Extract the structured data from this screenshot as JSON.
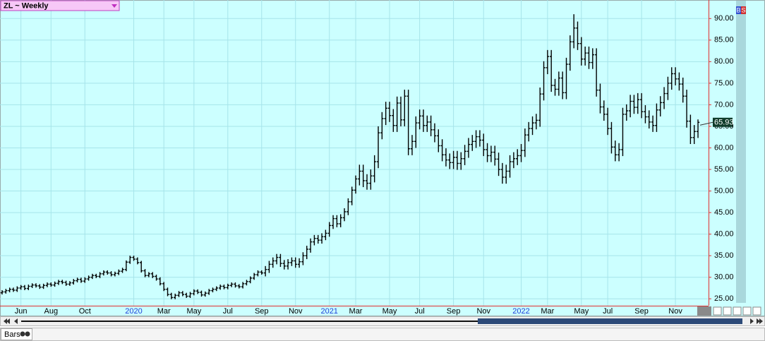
{
  "chart_data": {
    "type": "ohlc",
    "title": "ZL ~ Weekly",
    "color": "#000000",
    "grid": true,
    "ylim": [
      23.4,
      94.3
    ],
    "yticks": [
      {
        "value": 25,
        "label": "25.00"
      },
      {
        "value": 30,
        "label": "30.00"
      },
      {
        "value": 35,
        "label": "35.00"
      },
      {
        "value": 40,
        "label": "40.00"
      },
      {
        "value": 45,
        "label": "45.00"
      },
      {
        "value": 50,
        "label": "50.00"
      },
      {
        "value": 55,
        "label": "55.00"
      },
      {
        "value": 60,
        "label": "60.00"
      },
      {
        "value": 65,
        "label": "65.00"
      },
      {
        "value": 70,
        "label": "70.00"
      },
      {
        "value": 75,
        "label": "75.00"
      },
      {
        "value": 80,
        "label": "80.00"
      },
      {
        "value": 85,
        "label": "85.00"
      },
      {
        "value": 90,
        "label": "90.00"
      }
    ],
    "categories": [
      null,
      null,
      null,
      null,
      null,
      "Jun",
      null,
      null,
      null,
      null,
      null,
      null,
      null,
      "Aug",
      null,
      null,
      null,
      null,
      null,
      null,
      null,
      null,
      "Oct",
      null,
      null,
      null,
      null,
      null,
      null,
      null,
      null,
      null,
      null,
      null,
      null,
      "2020",
      null,
      null,
      null,
      null,
      null,
      null,
      null,
      "Mar",
      null,
      null,
      null,
      null,
      null,
      null,
      null,
      "May",
      null,
      null,
      null,
      null,
      null,
      null,
      null,
      null,
      "Jul",
      null,
      null,
      null,
      null,
      null,
      null,
      null,
      null,
      "Sep",
      null,
      null,
      null,
      null,
      null,
      null,
      null,
      null,
      "Nov",
      null,
      null,
      null,
      null,
      null,
      null,
      null,
      null,
      "2021",
      null,
      null,
      null,
      null,
      null,
      null,
      "Mar",
      null,
      null,
      null,
      null,
      null,
      null,
      null,
      null,
      "May",
      null,
      null,
      null,
      null,
      null,
      null,
      null,
      "Jul",
      null,
      null,
      null,
      null,
      null,
      null,
      null,
      null,
      "Sep",
      null,
      null,
      null,
      null,
      null,
      null,
      null,
      "Nov",
      null,
      null,
      null,
      null,
      null,
      null,
      null,
      null,
      null,
      "2022",
      null,
      null,
      null,
      null,
      null,
      null,
      "Mar",
      null,
      null,
      null,
      null,
      null,
      null,
      null,
      null,
      "May",
      null,
      null,
      null,
      null,
      null,
      null,
      "Jul",
      null,
      null,
      null,
      null,
      null,
      null,
      null,
      null,
      "Sep",
      null,
      null,
      null,
      null,
      null,
      null,
      null,
      null,
      "Nov",
      null,
      null,
      null,
      null,
      null,
      null
    ],
    "open": [
      26.4,
      26.6,
      26.9,
      27.2,
      27.0,
      27.5,
      27.8,
      27.4,
      27.9,
      28.2,
      28.0,
      27.7,
      28.1,
      28.4,
      28.2,
      28.6,
      29.0,
      28.8,
      28.4,
      28.7,
      29.2,
      29.5,
      29.1,
      29.6,
      30.0,
      30.4,
      30.2,
      30.8,
      31.2,
      31.0,
      30.6,
      30.9,
      31.4,
      31.8,
      33.5,
      34.6,
      34.2,
      33.4,
      31.5,
      30.4,
      30.8,
      30.2,
      29.6,
      28.5,
      27.2,
      26.0,
      25.3,
      25.8,
      26.4,
      26.0,
      25.6,
      26.2,
      26.8,
      26.5,
      25.9,
      26.3,
      26.9,
      27.2,
      27.5,
      27.9,
      27.6,
      28.1,
      28.4,
      28.0,
      27.8,
      28.5,
      29.0,
      29.8,
      30.6,
      31.2,
      31.0,
      31.8,
      33.0,
      33.8,
      34.6,
      33.2,
      32.6,
      33.4,
      33.8,
      33.0,
      33.6,
      35.0,
      36.5,
      38.2,
      39.0,
      38.6,
      39.4,
      40.2,
      42.0,
      43.6,
      42.4,
      43.8,
      45.2,
      47.5,
      50.2,
      52.8,
      54.6,
      52.4,
      51.8,
      53.5,
      56.8,
      63.5,
      66.8,
      69.2,
      67.5,
      65.2,
      70.4,
      66.5,
      72.0,
      59.8,
      61.5,
      65.8,
      67.4,
      65.2,
      66.0,
      64.2,
      62.8,
      60.5,
      58.4,
      57.2,
      56.6,
      57.8,
      56.4,
      57.5,
      59.2,
      60.8,
      61.5,
      62.6,
      61.8,
      59.6,
      58.2,
      59.0,
      57.4,
      55.0,
      53.2,
      54.6,
      56.8,
      57.5,
      58.2,
      59.4,
      63.0,
      64.5,
      65.8,
      66.4,
      72.5,
      78.6,
      81.2,
      74.5,
      73.6,
      76.2,
      72.8,
      79.4,
      84.6,
      87.8,
      84.2,
      80.6,
      82.0,
      79.8,
      81.6,
      73.4,
      69.5,
      67.8,
      64.5,
      60.2,
      58.4,
      59.6,
      67.8,
      68.6,
      70.8,
      69.4,
      71.2,
      68.4,
      67.2,
      66.0,
      65.2,
      68.8,
      70.5,
      72.6,
      75.0,
      77.2,
      76.0,
      74.8,
      72.0,
      66.2,
      62.4,
      63.8
    ],
    "high": [
      27.0,
      27.3,
      27.6,
      27.6,
      27.9,
      28.2,
      28.2,
      28.3,
      28.6,
      28.6,
      28.4,
      28.5,
      28.8,
      28.8,
      29.0,
      29.4,
      29.4,
      29.2,
      29.1,
      29.6,
      29.9,
      29.9,
      30.0,
      30.4,
      30.8,
      30.8,
      31.2,
      31.6,
      31.6,
      31.4,
      31.3,
      31.8,
      32.2,
      33.9,
      35.0,
      35.0,
      34.6,
      33.8,
      31.9,
      31.2,
      31.2,
      30.6,
      30.0,
      28.9,
      27.6,
      26.4,
      26.2,
      26.8,
      26.8,
      26.4,
      26.6,
      27.2,
      27.2,
      26.9,
      26.7,
      27.3,
      27.6,
      27.9,
      28.3,
      28.3,
      28.5,
      28.8,
      28.8,
      28.4,
      28.9,
      29.4,
      30.2,
      31.0,
      31.6,
      31.6,
      32.6,
      33.8,
      34.6,
      35.4,
      35.4,
      34.0,
      34.2,
      34.6,
      34.6,
      34.4,
      35.8,
      37.3,
      39.0,
      39.8,
      39.8,
      40.2,
      41.0,
      42.8,
      44.4,
      44.4,
      44.6,
      46.0,
      48.3,
      51.0,
      53.6,
      56.1,
      56.1,
      53.9,
      55.0,
      58.3,
      65.0,
      68.3,
      70.7,
      70.7,
      69.0,
      71.9,
      71.9,
      73.5,
      73.5,
      63.0,
      67.3,
      68.9,
      68.9,
      67.5,
      67.5,
      65.7,
      64.3,
      62.0,
      59.9,
      58.7,
      59.3,
      59.3,
      59.0,
      60.7,
      62.3,
      63.0,
      64.1,
      64.1,
      63.3,
      61.1,
      60.5,
      60.5,
      58.9,
      56.5,
      56.1,
      58.3,
      59.0,
      59.7,
      60.9,
      64.5,
      66.0,
      67.3,
      67.9,
      74.0,
      80.1,
      82.7,
      82.7,
      76.0,
      77.7,
      77.7,
      80.9,
      86.1,
      91.0,
      89.3,
      85.7,
      83.5,
      83.5,
      83.1,
      83.1,
      74.9,
      71.0,
      69.3,
      66.0,
      61.7,
      61.1,
      69.3,
      70.1,
      72.3,
      72.3,
      72.7,
      72.7,
      69.9,
      68.7,
      67.5,
      70.3,
      72.0,
      74.1,
      76.5,
      78.7,
      78.7,
      77.5,
      76.3,
      73.5,
      67.7,
      65.3,
      66.6
    ],
    "low": [
      26.0,
      26.2,
      26.5,
      26.6,
      26.6,
      27.1,
      27.0,
      27.0,
      27.5,
      27.6,
      27.3,
      27.3,
      27.7,
      27.8,
      27.8,
      28.2,
      28.4,
      28.0,
      28.0,
      28.3,
      28.8,
      28.7,
      28.7,
      29.2,
      29.6,
      29.8,
      29.8,
      30.4,
      30.6,
      30.2,
      30.2,
      30.5,
      31.0,
      31.4,
      33.1,
      33.8,
      33.0,
      31.1,
      30.0,
      30.0,
      29.8,
      29.2,
      28.1,
      26.8,
      25.6,
      24.9,
      24.9,
      25.4,
      25.6,
      25.2,
      25.2,
      25.8,
      26.1,
      25.5,
      25.5,
      25.9,
      26.5,
      26.8,
      27.1,
      27.2,
      27.2,
      27.7,
      27.6,
      27.4,
      27.4,
      28.1,
      28.6,
      29.4,
      30.2,
      30.6,
      30.2,
      31.0,
      32.2,
      33.0,
      32.4,
      31.8,
      31.8,
      32.6,
      32.2,
      32.2,
      32.8,
      34.2,
      35.7,
      37.4,
      37.8,
      37.8,
      38.6,
      39.4,
      41.2,
      41.6,
      41.6,
      43.0,
      44.4,
      46.7,
      49.4,
      51.3,
      50.9,
      50.3,
      50.3,
      52.0,
      55.3,
      62.0,
      65.3,
      66.0,
      63.7,
      63.7,
      65.0,
      65.0,
      58.3,
      58.3,
      60.0,
      64.3,
      63.7,
      63.7,
      62.7,
      61.3,
      59.0,
      56.9,
      55.7,
      55.1,
      55.1,
      54.9,
      54.9,
      56.0,
      57.7,
      59.3,
      60.0,
      60.3,
      58.1,
      56.7,
      56.7,
      55.9,
      53.5,
      51.7,
      51.7,
      53.1,
      55.3,
      56.0,
      56.7,
      57.9,
      61.5,
      63.0,
      64.3,
      64.9,
      71.0,
      77.1,
      73.0,
      72.1,
      72.1,
      71.3,
      71.3,
      77.9,
      83.1,
      82.7,
      79.1,
      79.1,
      78.3,
      78.3,
      71.9,
      68.0,
      66.3,
      63.0,
      58.7,
      56.9,
      56.9,
      58.1,
      66.3,
      67.1,
      67.9,
      67.9,
      66.9,
      65.7,
      64.5,
      63.7,
      63.7,
      67.3,
      69.0,
      71.1,
      73.5,
      74.5,
      73.3,
      70.5,
      64.7,
      60.9,
      60.9,
      62.3
    ],
    "close": [
      26.6,
      26.9,
      27.2,
      27.0,
      27.5,
      27.8,
      27.4,
      27.9,
      28.2,
      28.0,
      27.7,
      28.1,
      28.4,
      28.2,
      28.6,
      29.0,
      28.8,
      28.4,
      28.7,
      29.2,
      29.5,
      29.1,
      29.6,
      30.0,
      30.4,
      30.2,
      30.8,
      31.2,
      31.0,
      30.6,
      30.9,
      31.4,
      31.8,
      33.5,
      34.6,
      34.2,
      33.4,
      31.5,
      30.4,
      30.8,
      30.2,
      29.6,
      28.5,
      27.2,
      26.0,
      25.3,
      25.8,
      26.4,
      26.0,
      25.6,
      26.2,
      26.8,
      26.5,
      25.9,
      26.3,
      26.9,
      27.2,
      27.5,
      27.9,
      27.6,
      28.1,
      28.4,
      28.0,
      27.8,
      28.5,
      29.0,
      29.8,
      30.6,
      31.2,
      31.0,
      31.8,
      33.0,
      33.8,
      34.6,
      33.2,
      32.6,
      33.4,
      33.8,
      33.0,
      33.6,
      35.0,
      36.5,
      38.2,
      39.0,
      38.6,
      39.4,
      40.2,
      42.0,
      43.6,
      42.4,
      43.8,
      45.2,
      47.5,
      50.2,
      52.8,
      54.6,
      52.4,
      51.8,
      53.5,
      56.8,
      63.5,
      66.8,
      69.2,
      67.5,
      65.2,
      70.4,
      66.5,
      72.0,
      59.8,
      61.5,
      65.8,
      67.4,
      65.2,
      66.0,
      64.2,
      62.8,
      60.5,
      58.4,
      57.2,
      56.6,
      57.8,
      56.4,
      57.5,
      59.2,
      60.8,
      61.5,
      62.6,
      61.8,
      59.6,
      58.2,
      59.0,
      57.4,
      55.0,
      53.2,
      54.6,
      56.8,
      57.5,
      58.2,
      59.4,
      63.0,
      64.5,
      65.8,
      66.4,
      72.5,
      78.6,
      81.2,
      74.5,
      73.6,
      76.2,
      72.8,
      79.4,
      84.6,
      87.8,
      84.2,
      80.6,
      82.0,
      79.8,
      81.6,
      73.4,
      69.5,
      67.8,
      64.5,
      60.2,
      58.4,
      59.6,
      67.8,
      68.6,
      70.8,
      69.4,
      71.2,
      68.4,
      67.2,
      66.0,
      65.2,
      68.8,
      70.5,
      72.6,
      75.0,
      77.2,
      76.0,
      74.8,
      72.0,
      66.2,
      62.4,
      63.8,
      65.93
    ]
  },
  "trade_buttons": [
    "B",
    "S"
  ],
  "footer": {
    "mode": "Bars"
  }
}
